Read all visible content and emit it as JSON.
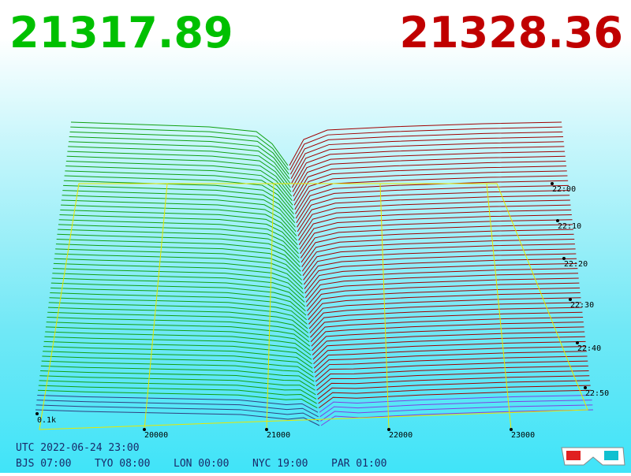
{
  "header": {
    "bid": "21317.89",
    "ask": "21328.36"
  },
  "price_axis": {
    "ticks": [
      "20000",
      "21000",
      "22000",
      "23000"
    ]
  },
  "volume_label": "0.1k",
  "time_axis": {
    "ticks": [
      "22:00",
      "22:10",
      "22:20",
      "22:30",
      "22:40",
      "22:50"
    ]
  },
  "footer": {
    "utc": "UTC 2022-06-24 23:00",
    "zones": [
      "BJS 07:00",
      "TYO 08:00",
      "LON 00:00",
      "NYC 19:00",
      "PAR 01:00"
    ]
  }
}
